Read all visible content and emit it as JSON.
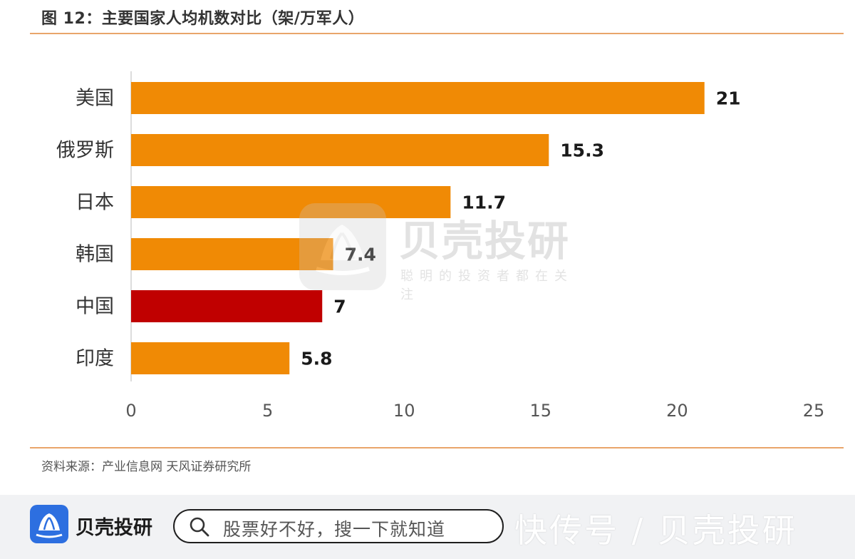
{
  "figure": {
    "title": "图 12：主要国家人均机数对比（架/万军人）",
    "source": "资料来源：产业信息网 天风证券研究所"
  },
  "chart_data": {
    "type": "bar",
    "orientation": "horizontal",
    "title": "图 12：主要国家人均机数对比（架/万军人）",
    "categories": [
      "美国",
      "俄罗斯",
      "日本",
      "韩国",
      "中国",
      "印度"
    ],
    "values": [
      21,
      15.3,
      11.7,
      7.4,
      7,
      5.8
    ],
    "value_labels": [
      "21",
      "15.3",
      "11.7",
      "7.4",
      "7",
      "5.8"
    ],
    "xlim": [
      0,
      25
    ],
    "xticks": [
      0,
      5,
      10,
      15,
      20,
      25
    ],
    "grid": false,
    "colors": {
      "bar": "#f08a05",
      "highlight": "#c00000",
      "highlight_category": "中国"
    }
  },
  "watermark": {
    "name": "贝壳投研",
    "slogan": "聪明的投资者都在关注"
  },
  "footer": {
    "brand": "贝壳投研",
    "search_placeholder": "股票好不好，搜一下就知道",
    "platform": "快传号 / 贝壳投研"
  },
  "icons": {
    "brand_logo": "shell-logo-icon",
    "search": "search-icon"
  }
}
